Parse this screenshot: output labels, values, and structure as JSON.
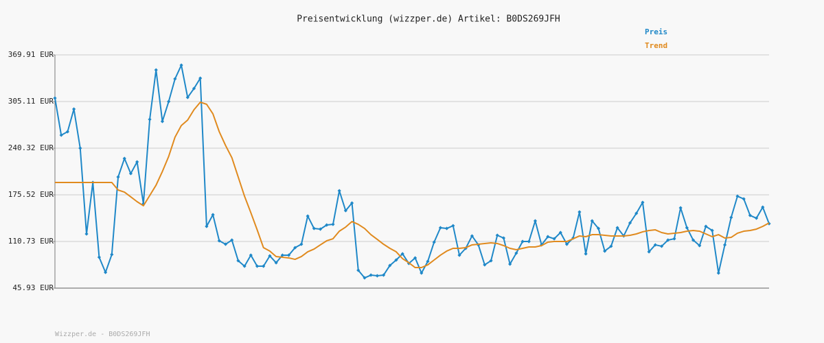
{
  "chart_data": {
    "type": "line",
    "title": "Preisentwicklung (wizzper.de) Artikel: B0DS269JFH",
    "footer": "Wizzper.de - B0DS269JFH",
    "ylim": [
      45.93,
      369.91
    ],
    "yticks": [
      {
        "value": 45.93,
        "label": "45.93 EUR"
      },
      {
        "value": 110.73,
        "label": "110.73 EUR"
      },
      {
        "value": 175.52,
        "label": "175.52 EUR"
      },
      {
        "value": 240.32,
        "label": "240.32 EUR"
      },
      {
        "value": 305.11,
        "label": "305.11 EUR"
      },
      {
        "value": 369.91,
        "label": "369.91 EUR"
      }
    ],
    "grid": true,
    "legend": "top-right",
    "series": [
      {
        "name": "Preis",
        "color": "#1f88c8",
        "markers": true,
        "values": [
          309.9,
          258.4,
          263.2,
          294.6,
          240.3,
          121.2,
          192.7,
          88.8,
          67.8,
          92.6,
          200.3,
          226.0,
          205.1,
          221.3,
          163.1,
          280.3,
          349.0,
          277.5,
          305.1,
          336.6,
          355.6,
          310.8,
          323.2,
          337.5,
          131.7,
          147.9,
          111.7,
          106.9,
          112.6,
          84.0,
          76.4,
          91.7,
          76.4,
          76.4,
          90.7,
          81.2,
          91.7,
          91.7,
          102.1,
          106.9,
          146.0,
          128.8,
          127.9,
          133.6,
          134.5,
          181.2,
          153.6,
          164.1,
          70.7,
          60.2,
          64.0,
          63.1,
          64.0,
          77.4,
          85.0,
          93.6,
          80.2,
          87.9,
          66.9,
          83.1,
          109.8,
          129.8,
          128.8,
          132.6,
          91.7,
          101.2,
          118.4,
          106.0,
          78.3,
          84.0,
          119.3,
          115.5,
          79.3,
          94.5,
          110.7,
          110.7,
          139.3,
          106.0,
          117.4,
          114.5,
          123.1,
          106.9,
          115.5,
          151.7,
          93.6,
          139.3,
          128.8,
          97.4,
          104.1,
          129.8,
          118.4,
          136.5,
          149.8,
          165.0,
          96.4,
          106.0,
          104.1,
          112.6,
          114.5,
          157.4,
          129.8,
          112.6,
          105.0,
          131.7,
          126.0,
          66.9,
          106.0,
          144.1,
          173.6,
          169.8,
          146.9,
          143.1,
          158.4,
          135.5
        ]
      },
      {
        "name": "Trend",
        "color": "#e08a1e",
        "markers": false,
        "values": [
          192.7,
          192.7,
          192.7,
          192.7,
          192.7,
          192.7,
          192.7,
          192.7,
          192.7,
          192.7,
          182.2,
          179.3,
          172.7,
          166.0,
          160.3,
          174.6,
          188.9,
          207.9,
          228.9,
          255.6,
          271.8,
          279.4,
          293.7,
          304.2,
          301.3,
          288.0,
          263.2,
          244.1,
          227.0,
          200.3,
          173.6,
          150.7,
          126.9,
          102.1,
          97.4,
          89.8,
          88.8,
          87.9,
          85.9,
          89.8,
          96.4,
          100.2,
          106.0,
          111.7,
          114.5,
          125.0,
          130.7,
          138.4,
          134.5,
          128.8,
          120.2,
          113.6,
          106.9,
          101.2,
          96.4,
          86.9,
          81.2,
          74.5,
          74.5,
          78.3,
          85.0,
          91.7,
          97.4,
          101.2,
          101.2,
          102.1,
          106.0,
          106.9,
          107.9,
          108.8,
          107.9,
          105.0,
          101.2,
          99.3,
          101.2,
          103.1,
          103.1,
          105.0,
          109.8,
          110.7,
          110.7,
          110.7,
          114.5,
          118.4,
          117.4,
          120.2,
          120.2,
          119.3,
          118.4,
          118.4,
          118.4,
          119.3,
          121.2,
          124.1,
          126.0,
          126.9,
          123.1,
          121.2,
          122.2,
          123.1,
          125.0,
          126.0,
          125.0,
          121.2,
          117.4,
          120.2,
          115.5,
          116.4,
          122.2,
          125.0,
          126.0,
          127.9,
          131.7,
          136.5
        ]
      }
    ]
  }
}
